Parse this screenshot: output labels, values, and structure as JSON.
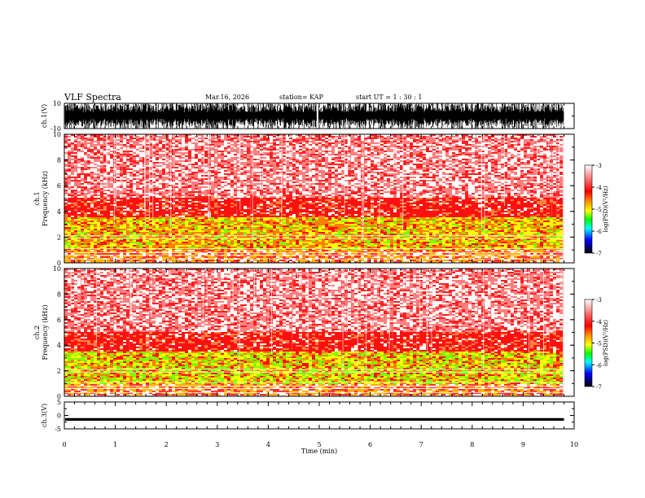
{
  "header": {
    "title": "VLF Spectra",
    "date": "Mar.16, 2026",
    "station": "station= KAP",
    "start_ut": "start  UT =   1 : 30 : 1"
  },
  "chart_data": [
    {
      "id": "ch1-waveform",
      "type": "line",
      "ylabel": "ch.1(V)",
      "ylim": [
        -10,
        10
      ],
      "yticks": [
        "10",
        "-10"
      ],
      "xlim": [
        0,
        10
      ],
      "description_series": "dense oscillating waveform, amplitude about +/-10 V, data through ~9.8 min"
    },
    {
      "id": "ch1-spectrogram",
      "type": "heatmap",
      "ylabel": "ch.1\nFrequency (kHz)",
      "ylim": [
        0,
        10
      ],
      "yticks": [
        "0",
        "2",
        "4",
        "6",
        "8",
        "10"
      ],
      "xlim": [
        0,
        9.8
      ],
      "bands": [
        {
          "from": 0,
          "to": 1,
          "level": "red/orange with white lines"
        },
        {
          "from": 1,
          "to": 3.5,
          "level": "orange/yellow/green (-4.5 to -5)"
        },
        {
          "from": 3.5,
          "to": 5,
          "level": "red (-4)"
        },
        {
          "from": 5,
          "to": 10,
          "level": "light red / white (-3)"
        }
      ],
      "colorbar": {
        "label": "log(PSD)(V²/Hz)",
        "ticks": [
          "-3",
          "-4",
          "-5",
          "-6",
          "-7"
        ],
        "range": [
          -7,
          -3
        ]
      }
    },
    {
      "id": "ch2-spectrogram",
      "type": "heatmap",
      "ylabel": "ch.2\nFrequency (kHz)",
      "ylim": [
        0,
        10
      ],
      "yticks": [
        "0",
        "2",
        "4",
        "6",
        "8",
        "10"
      ],
      "xlim": [
        0,
        9.8
      ],
      "bands": [
        {
          "from": 0,
          "to": 1,
          "level": "red/yellow with white lines"
        },
        {
          "from": 1,
          "to": 3.2,
          "level": "yellow/green (-5)"
        },
        {
          "from": 3.2,
          "to": 5.5,
          "level": "red (-4)"
        },
        {
          "from": 5.5,
          "to": 10,
          "level": "light red / white (-3)"
        }
      ],
      "colorbar": {
        "label": "log(PSD)(V²/Hz)",
        "ticks": [
          "-3",
          "-4",
          "-5",
          "-6",
          "-7"
        ],
        "range": [
          -7,
          -3
        ]
      }
    },
    {
      "id": "ch3-waveform",
      "type": "line",
      "ylabel": "ch.3(V)",
      "ylim": [
        -5,
        5
      ],
      "yticks": [
        "5",
        "0",
        "-5"
      ],
      "xlim": [
        0,
        10
      ],
      "description_series": "near-constant band around -1.5 V"
    }
  ],
  "xaxis": {
    "label": "Time  (min)",
    "ticks": [
      "0",
      "1",
      "2",
      "3",
      "4",
      "5",
      "6",
      "7",
      "8",
      "9",
      "10"
    ]
  },
  "colors": {
    "colorbar_stops": [
      "#ffffff",
      "#ff0000",
      "#ffff00",
      "#00ff00",
      "#00ffff",
      "#0000ff",
      "#000000"
    ]
  }
}
